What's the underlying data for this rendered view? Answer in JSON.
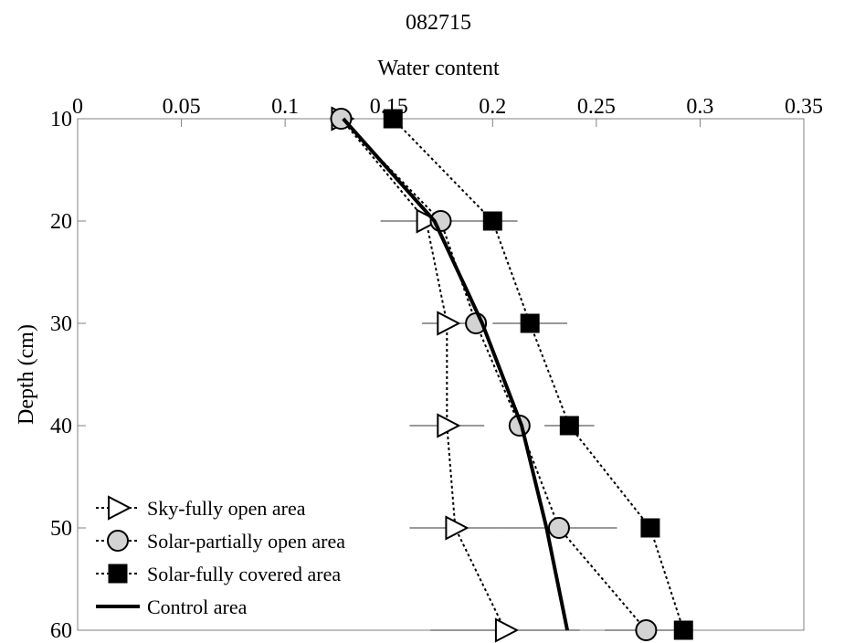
{
  "chart_data": {
    "type": "line",
    "title": "082715",
    "xlabel": "Water content",
    "ylabel": "Depth (cm)",
    "xlim": [
      0,
      0.35
    ],
    "ylim": [
      10,
      60
    ],
    "x_axis_position": "top",
    "y_axis_reversed": true,
    "x_ticks": [
      0,
      0.05,
      0.1,
      0.15,
      0.2,
      0.25,
      0.3,
      0.35
    ],
    "x_tick_labels": [
      "0",
      "0.05",
      "0.1",
      "0.15",
      "0.2",
      "0.25",
      "0.3",
      "0.35"
    ],
    "y_ticks": [
      10,
      20,
      30,
      40,
      50,
      60
    ],
    "y_tick_labels": [
      "10",
      "20",
      "30",
      "40",
      "50",
      "60"
    ],
    "grid": false,
    "legend_position": "bottom-left",
    "series": [
      {
        "name": "Sky-fully open area",
        "marker": "triangle-right",
        "line_style": "dotted",
        "color": "#000000",
        "fill": "#ffffff",
        "depth": [
          10,
          20,
          30,
          40,
          50,
          60
        ],
        "water_content": [
          0.127,
          0.168,
          0.178,
          0.178,
          0.182,
          0.206
        ],
        "error": [
          null,
          0.022,
          0.012,
          0.018,
          0.022,
          0.036
        ]
      },
      {
        "name": "Solar-partially open area",
        "marker": "circle",
        "line_style": "dotted",
        "color": "#000000",
        "fill": "#d3d3d3",
        "depth": [
          10,
          20,
          30,
          40,
          50,
          60
        ],
        "water_content": [
          0.127,
          0.175,
          0.192,
          0.213,
          0.232,
          0.274
        ],
        "error": [
          null,
          null,
          null,
          null,
          0.028,
          0.02
        ]
      },
      {
        "name": "Solar-fully covered area",
        "marker": "square",
        "line_style": "dotted",
        "color": "#000000",
        "fill": "#000000",
        "depth": [
          10,
          20,
          30,
          40,
          50,
          60
        ],
        "water_content": [
          0.152,
          0.2,
          0.218,
          0.237,
          0.276,
          0.292
        ],
        "error": [
          null,
          0.012,
          0.018,
          0.012,
          null,
          null
        ]
      },
      {
        "name": "Control area",
        "marker": "none",
        "line_style": "solid",
        "color": "#000000",
        "depth": [
          10,
          20,
          30,
          40,
          50,
          60
        ],
        "water_content": [
          0.128,
          0.172,
          0.195,
          0.214,
          0.226,
          0.236
        ]
      }
    ]
  }
}
